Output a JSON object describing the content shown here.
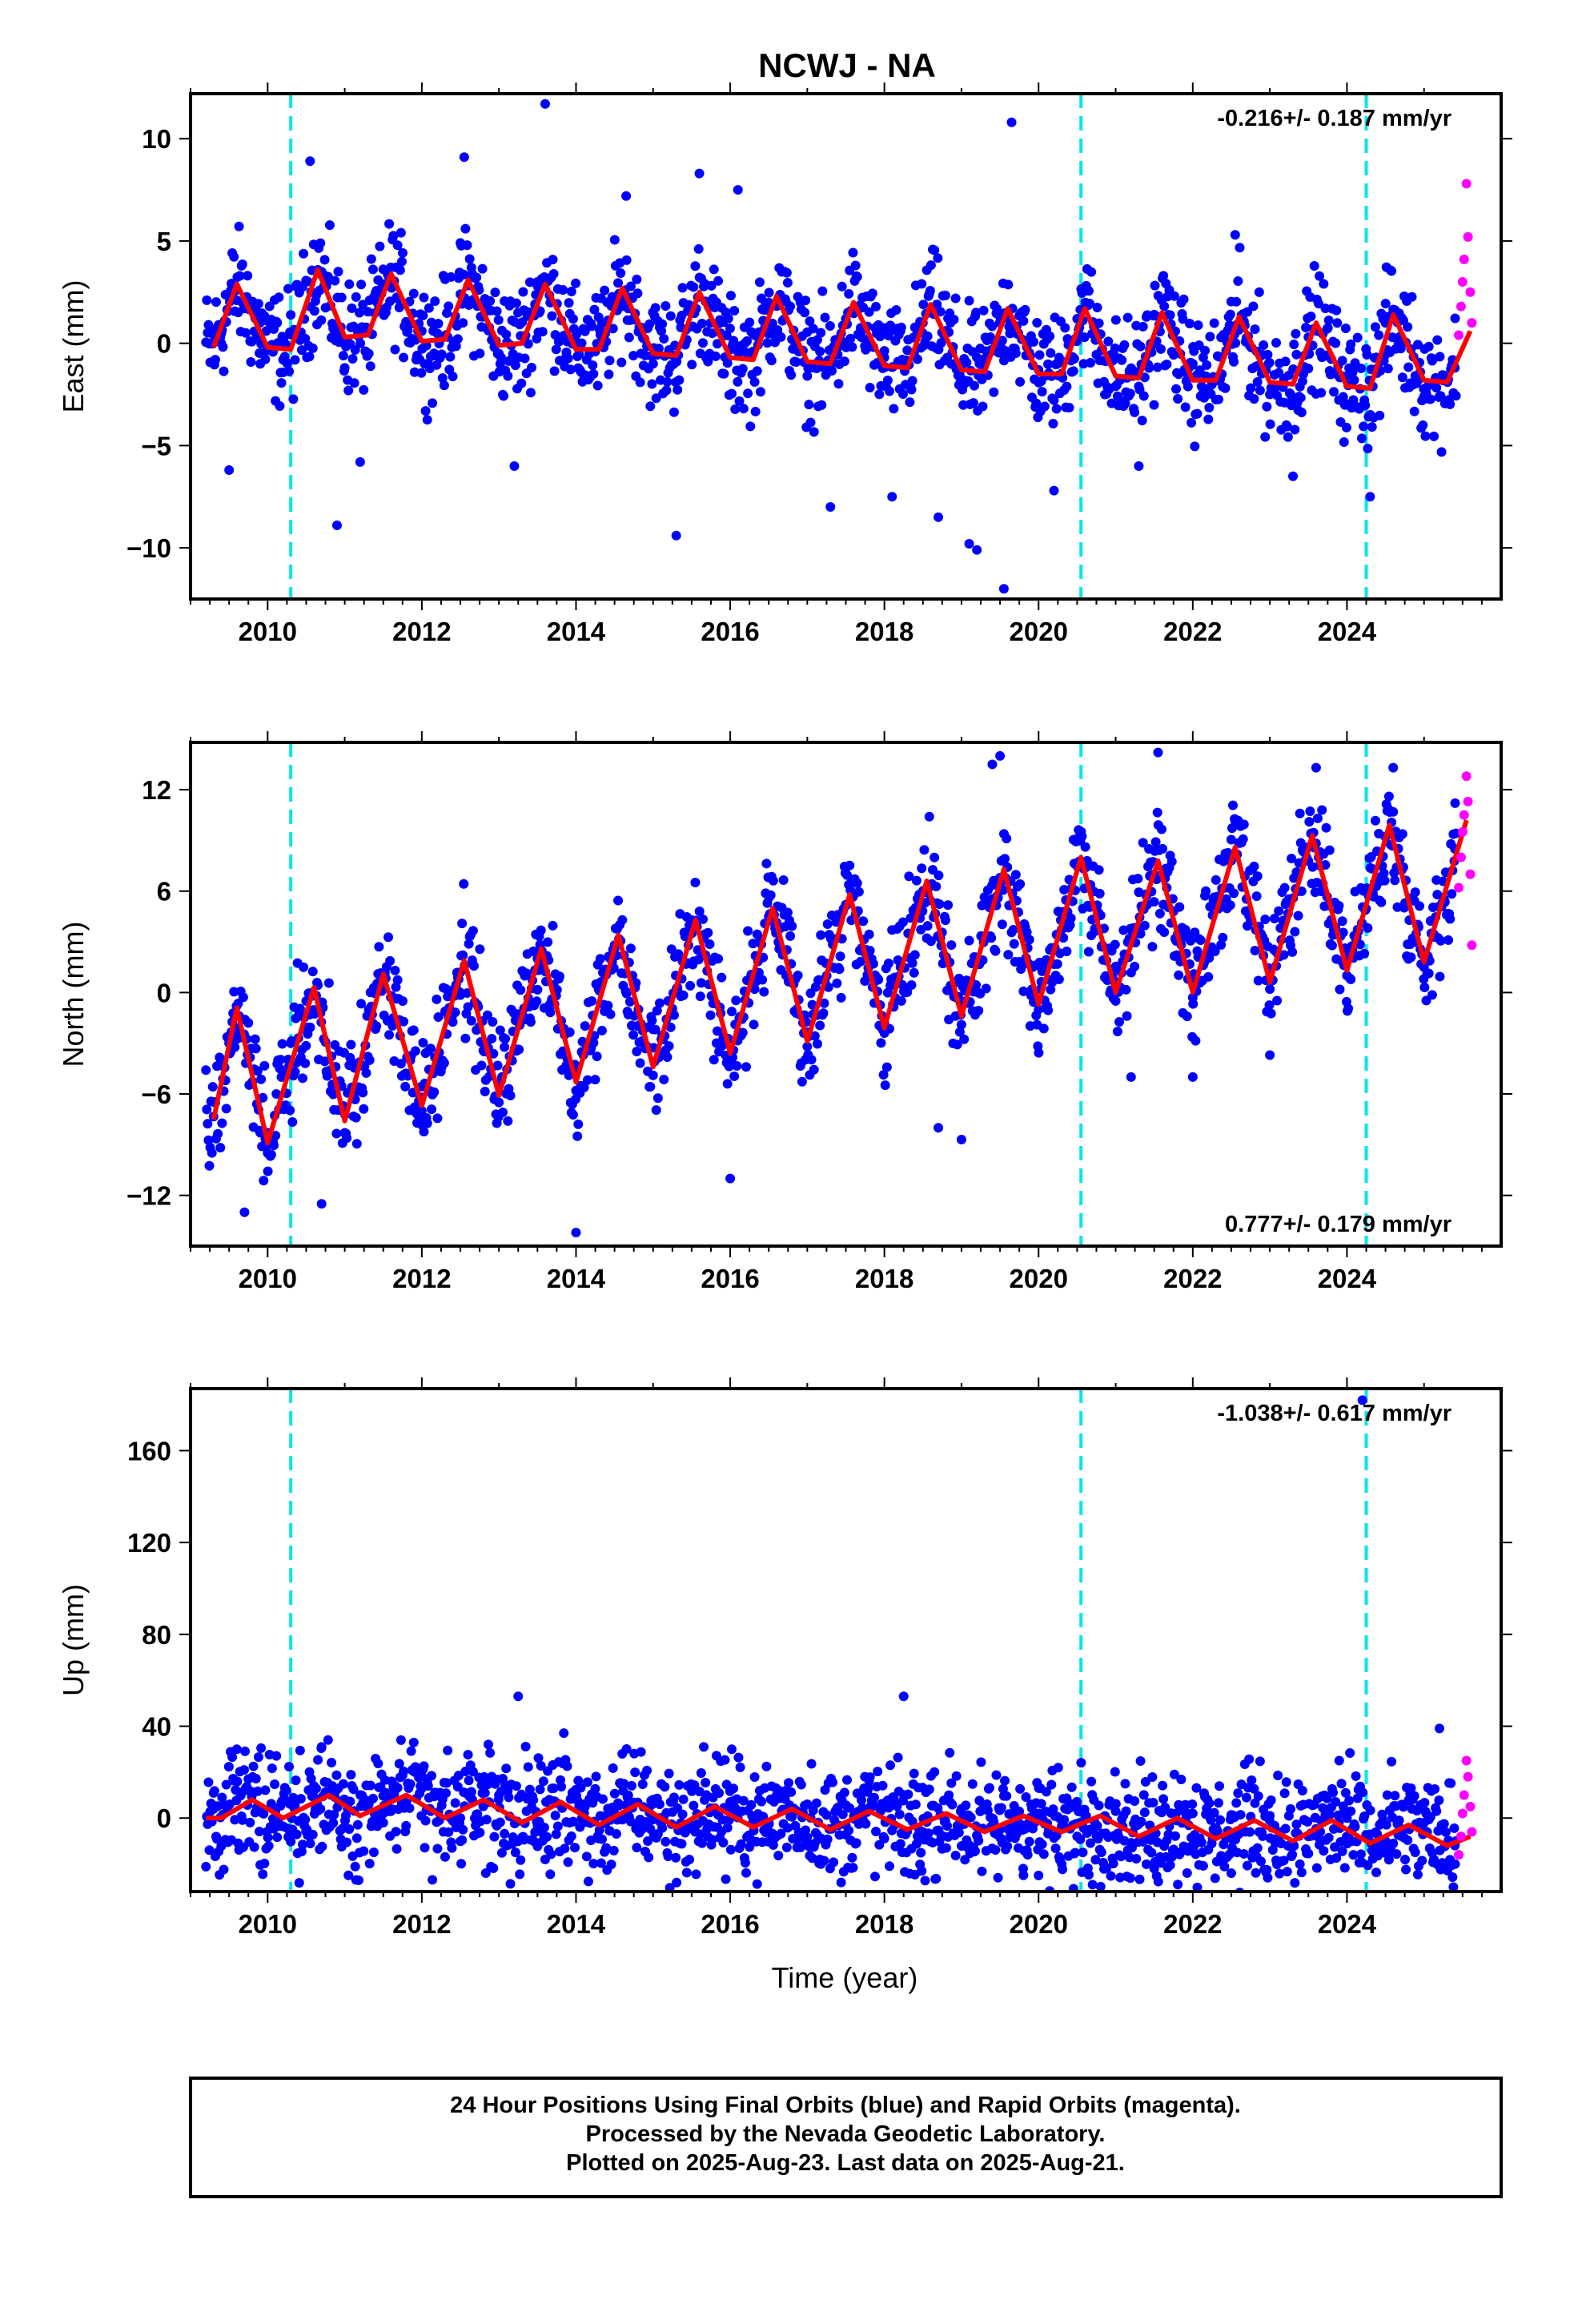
{
  "title": "NCWJ - NA",
  "xlabel": "Time (year)",
  "footer": {
    "line1": "24 Hour Positions Using Final Orbits (blue) and Rapid Orbits (magenta).",
    "line2": "Processed by the Nevada Geodetic Laboratory.",
    "line3": "Plotted on 2025-Aug-23. Last data on 2025-Aug-21."
  },
  "colors": {
    "final_points": "#0000ff",
    "rapid_points": "#ff00ff",
    "model": "#ff0000",
    "equipment_change": "#00e5ee"
  },
  "chart_data": [
    {
      "type": "scatter",
      "name": "east",
      "ylabel": "East (mm)",
      "rate_label": "-0.216+/- 0.187 mm/yr",
      "rate_position": "top-right",
      "xlim": [
        2009.0,
        2026.0
      ],
      "ylim": [
        -12.5,
        12.2
      ],
      "xticks": [
        2010,
        2012,
        2014,
        2016,
        2018,
        2020,
        2022,
        2024
      ],
      "xtick_labels": [
        "2010",
        "2012",
        "2014",
        "2016",
        "2018",
        "2020",
        "2022",
        "2024"
      ],
      "yticks": [
        -10,
        -5,
        0,
        5,
        10
      ],
      "ytick_labels": [
        "−10",
        "−5",
        "0",
        "5",
        "10"
      ],
      "equipment_changes": [
        2010.3,
        2020.55,
        2024.25
      ],
      "model": {
        "x": [
          2009.3,
          2009.6,
          2010.0,
          2010.3,
          2010.65,
          2011.0,
          2011.3,
          2011.6,
          2012.0,
          2012.3,
          2012.6,
          2013.0,
          2013.3,
          2013.6,
          2014.0,
          2014.3,
          2014.6,
          2015.0,
          2015.3,
          2015.6,
          2016.0,
          2016.3,
          2016.6,
          2017.0,
          2017.3,
          2017.6,
          2018.0,
          2018.3,
          2018.6,
          2019.0,
          2019.3,
          2019.6,
          2020.0,
          2020.3,
          2020.6,
          2021.0,
          2021.3,
          2021.6,
          2022.0,
          2022.3,
          2022.6,
          2023.0,
          2023.3,
          2023.6,
          2024.0,
          2024.3,
          2024.6,
          2025.0,
          2025.3,
          2025.6
        ],
        "y": [
          -0.2,
          2.9,
          -0.2,
          -0.3,
          3.6,
          0.3,
          0.4,
          3.4,
          0.1,
          0.2,
          3.1,
          -0.1,
          0.0,
          2.9,
          -0.3,
          -0.3,
          2.7,
          -0.5,
          -0.6,
          2.5,
          -0.7,
          -0.8,
          2.3,
          -0.9,
          -1.0,
          2.0,
          -1.1,
          -1.2,
          1.9,
          -1.3,
          -1.4,
          1.7,
          -1.5,
          -1.5,
          1.7,
          -1.6,
          -1.7,
          1.5,
          -1.8,
          -1.8,
          1.3,
          -1.9,
          -2.0,
          1.0,
          -2.1,
          -2.2,
          1.4,
          -1.8,
          -1.9,
          0.6
        ]
      },
      "points": {
        "x": [
          2009.4,
          2009.6,
          2009.9,
          2010.2,
          2010.7,
          2011.0,
          2011.5,
          2012.0,
          2012.5,
          2013.0,
          2013.5,
          2014.0,
          2014.5,
          2015.0,
          2015.5,
          2016.0,
          2016.5,
          2017.0,
          2017.5,
          2018.0,
          2018.5,
          2019.0,
          2019.5,
          2020.0,
          2020.5,
          2021.0,
          2021.5,
          2022.0,
          2022.5,
          2023.0,
          2023.5,
          2024.0,
          2024.5,
          2025.0,
          2025.4
        ],
        "y": [
          0.5,
          2.1,
          1.0,
          -0.8,
          3.5,
          -1.2,
          2.8,
          0.6,
          2.4,
          -0.5,
          3.0,
          -0.1,
          2.0,
          -1.0,
          1.5,
          -0.3,
          2.0,
          -1.6,
          1.2,
          -0.7,
          1.0,
          -2.0,
          1.3,
          -1.3,
          1.2,
          -2.1,
          1.4,
          -1.0,
          0.8,
          -2.5,
          0.3,
          -1.6,
          1.0,
          -2.6,
          -1.2
        ]
      },
      "outliers": {
        "x": [
          2009.5,
          2010.55,
          2010.9,
          2011.2,
          2012.55,
          2013.2,
          2013.6,
          2014.65,
          2015.3,
          2015.6,
          2016.1,
          2017.3,
          2018.1,
          2018.7,
          2019.1,
          2019.2,
          2019.55,
          2019.65,
          2020.2,
          2021.3,
          2022.55,
          2023.3,
          2024.3
        ],
        "y": [
          -6.2,
          8.9,
          -8.9,
          -5.8,
          9.1,
          -6.0,
          11.7,
          7.2,
          -9.4,
          8.3,
          7.5,
          -8.0,
          -7.5,
          -8.5,
          -9.8,
          -10.1,
          -12.0,
          10.8,
          -7.2,
          -6.0,
          5.3,
          -6.5,
          -7.5
        ]
      },
      "rapid_points": {
        "x": [
          2025.45,
          2025.48,
          2025.5,
          2025.52,
          2025.55,
          2025.57,
          2025.6,
          2025.62
        ],
        "y": [
          0.4,
          1.8,
          3.0,
          4.1,
          7.8,
          5.2,
          2.5,
          1.0
        ]
      }
    },
    {
      "type": "scatter",
      "name": "north",
      "ylabel": "North (mm)",
      "rate_label": "0.777+/- 0.179 mm/yr",
      "rate_position": "bottom-right",
      "xlim": [
        2009.0,
        2026.0
      ],
      "ylim": [
        -15.0,
        14.8
      ],
      "xticks": [
        2010,
        2012,
        2014,
        2016,
        2018,
        2020,
        2022,
        2024
      ],
      "xtick_labels": [
        "2010",
        "2012",
        "2014",
        "2016",
        "2018",
        "2020",
        "2022",
        "2024"
      ],
      "yticks": [
        -12,
        -6,
        0,
        6,
        12
      ],
      "ytick_labels": [
        "−12",
        "−6",
        "0",
        "6",
        "12"
      ],
      "equipment_changes": [
        2010.3,
        2020.55,
        2024.25
      ],
      "model": {
        "x": [
          2009.3,
          2009.6,
          2010.0,
          2010.6,
          2011.0,
          2011.5,
          2012.0,
          2012.55,
          2013.0,
          2013.55,
          2014.0,
          2014.55,
          2015.0,
          2015.55,
          2016.0,
          2016.55,
          2017.0,
          2017.55,
          2018.0,
          2018.55,
          2019.0,
          2019.55,
          2020.0,
          2020.55,
          2021.0,
          2021.55,
          2022.0,
          2022.55,
          2023.0,
          2023.55,
          2024.0,
          2024.55,
          2025.0,
          2025.55
        ],
        "y": [
          -7.5,
          -0.9,
          -8.9,
          0.3,
          -7.6,
          1.1,
          -6.7,
          1.9,
          -6.1,
          2.6,
          -5.3,
          3.4,
          -4.4,
          4.3,
          -3.6,
          5.0,
          -2.9,
          5.8,
          -2.1,
          6.6,
          -1.4,
          7.3,
          -0.7,
          8.0,
          0.0,
          7.8,
          0.0,
          8.6,
          0.6,
          9.3,
          1.3,
          9.9,
          1.8,
          10.2
        ]
      },
      "points": {
        "x": [
          2009.5,
          2010.0,
          2010.5,
          2011.0,
          2011.5,
          2012.0,
          2012.5,
          2013.0,
          2013.5,
          2014.0,
          2014.5,
          2015.0,
          2015.5,
          2016.0,
          2016.5,
          2017.0,
          2017.5,
          2018.0,
          2018.5,
          2019.0,
          2019.5,
          2020.0,
          2020.5,
          2021.0,
          2021.5,
          2022.0,
          2022.5,
          2023.0,
          2023.5,
          2024.0,
          2024.5,
          2025.0,
          2025.4
        ],
        "y": [
          -3.0,
          -9.5,
          -0.5,
          -8.3,
          0.5,
          -7.0,
          1.2,
          -6.5,
          2.0,
          -5.8,
          2.8,
          -4.9,
          3.8,
          -4.0,
          4.5,
          -3.2,
          5.2,
          -2.4,
          6.0,
          -1.9,
          6.8,
          -1.0,
          7.5,
          -0.5,
          7.0,
          -0.3,
          7.8,
          0.2,
          8.6,
          1.0,
          9.2,
          1.5,
          8.5
        ]
      },
      "outliers": {
        "x": [
          2009.7,
          2010.7,
          2014.0,
          2016.0,
          2018.7,
          2019.0,
          2019.4,
          2019.5,
          2021.2,
          2021.55,
          2022.0,
          2023.0,
          2023.6,
          2024.6
        ],
        "y": [
          -13.0,
          -12.5,
          -14.2,
          -11.0,
          -8.0,
          -8.7,
          13.5,
          14.0,
          -5.0,
          14.2,
          -5.0,
          -3.7,
          13.3,
          13.3
        ]
      },
      "rapid_points": {
        "x": [
          2025.45,
          2025.48,
          2025.5,
          2025.52,
          2025.55,
          2025.57,
          2025.6,
          2025.62
        ],
        "y": [
          6.2,
          8.0,
          9.5,
          10.5,
          12.8,
          11.3,
          7.0,
          2.8
        ]
      }
    },
    {
      "type": "scatter",
      "name": "up",
      "ylabel": "Up (mm)",
      "rate_label": "-1.038+/- 0.617 mm/yr",
      "rate_position": "top-right",
      "xlim": [
        2009.0,
        2026.0
      ],
      "ylim": [
        -32,
        187
      ],
      "xticks": [
        2010,
        2012,
        2014,
        2016,
        2018,
        2020,
        2022,
        2024
      ],
      "xtick_labels": [
        "2010",
        "2012",
        "2014",
        "2016",
        "2018",
        "2020",
        "2022",
        "2024"
      ],
      "yticks": [
        0,
        40,
        80,
        120,
        160
      ],
      "ytick_labels": [
        "0",
        "40",
        "80",
        "120",
        "160"
      ],
      "equipment_changes": [
        2010.3,
        2020.55,
        2024.25
      ],
      "model": {
        "x": [
          2009.2,
          2009.4,
          2009.8,
          2010.2,
          2010.8,
          2011.2,
          2011.8,
          2012.3,
          2012.8,
          2013.3,
          2013.8,
          2014.3,
          2014.8,
          2015.3,
          2015.8,
          2016.3,
          2016.8,
          2017.3,
          2017.8,
          2018.3,
          2018.8,
          2019.3,
          2019.8,
          2020.3,
          2020.8,
          2021.3,
          2021.8,
          2022.3,
          2022.8,
          2023.3,
          2023.8,
          2024.3,
          2024.8,
          2025.3,
          2025.6
        ],
        "y": [
          0,
          0,
          8,
          0,
          10,
          1,
          10,
          0,
          8,
          -2,
          7,
          -3,
          6,
          -4,
          5,
          -4,
          4,
          -5,
          3,
          -5,
          2,
          -6,
          1,
          -6,
          1,
          -8,
          0,
          -9,
          -1,
          -10,
          -1,
          -11,
          -3,
          -12,
          -8
        ]
      },
      "points": {
        "x": [
          2009.3,
          2009.7,
          2010.1,
          2010.6,
          2011.0,
          2011.5,
          2012.0,
          2012.5,
          2013.0,
          2013.5,
          2014.0,
          2014.5,
          2015.0,
          2015.5,
          2016.0,
          2016.5,
          2017.0,
          2017.5,
          2018.0,
          2018.5,
          2019.0,
          2019.5,
          2020.0,
          2020.5,
          2021.0,
          2021.5,
          2022.0,
          2022.5,
          2023.0,
          2023.5,
          2024.0,
          2024.5,
          2025.0,
          2025.4
        ],
        "y": [
          4,
          12,
          3,
          14,
          8,
          -2,
          13,
          0,
          10,
          -3,
          9,
          2,
          8,
          -4,
          7,
          -2,
          6,
          -3,
          5,
          -6,
          4,
          -5,
          2,
          -8,
          3,
          -6,
          2,
          -9,
          1,
          -8,
          0,
          -10,
          -2,
          -12
        ]
      },
      "outliers": {
        "x": [
          2009.6,
          2010.7,
          2013.25,
          2014.6,
          2018.25,
          2019.8,
          2020.0,
          2020.3,
          2020.7,
          2021.5,
          2022.5,
          2023.9,
          2024.2,
          2025.2
        ],
        "y": [
          30,
          31,
          53,
          28,
          53,
          -22,
          -25,
          -20,
          -29,
          -22,
          -24,
          25,
          182,
          39
        ]
      },
      "rapid_points": {
        "x": [
          2025.45,
          2025.48,
          2025.5,
          2025.52,
          2025.55,
          2025.57,
          2025.6,
          2025.62
        ],
        "y": [
          -16,
          -8,
          2,
          10,
          25,
          18,
          5,
          -6
        ]
      }
    }
  ]
}
